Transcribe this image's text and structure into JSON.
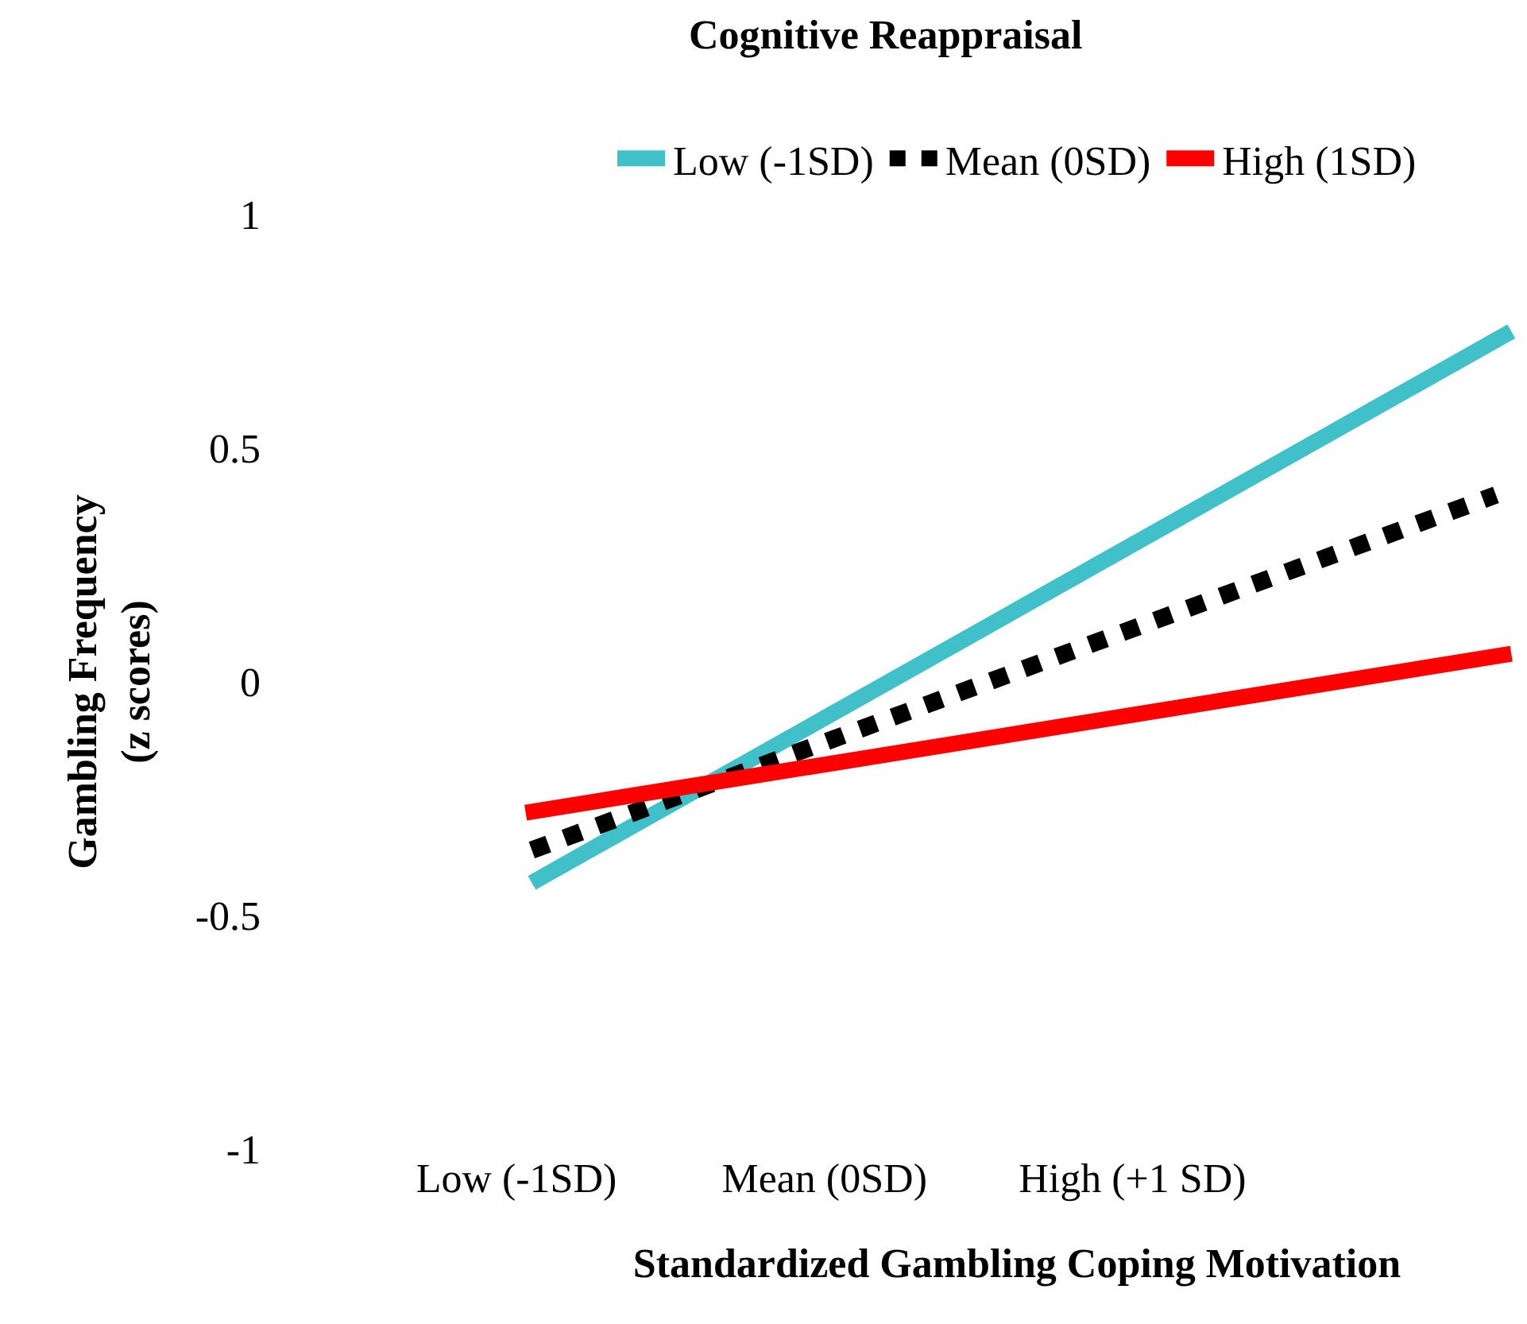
{
  "chart_data": {
    "type": "line",
    "title": "Cognitive Reappraisal",
    "xlabel": "Standardized Gambling Coping Motivation",
    "ylabel": "Gambling Frequency\n(z scores)",
    "xlim": [
      -1,
      2.25
    ],
    "xticks": [
      {
        "value": -1,
        "label": "Low (-1SD)"
      },
      {
        "value": 0,
        "label": "Mean (0SD)"
      },
      {
        "value": 1,
        "label": "High (+1 SD)"
      }
    ],
    "ylim": [
      -1,
      1
    ],
    "yticks": [
      1,
      0.5,
      0,
      -0.5,
      -1
    ],
    "grid": false,
    "legend": "top",
    "marker": "none",
    "series": [
      {
        "name": "Low (-1SD)",
        "color": "#40c0c8",
        "x": [
          -0.95,
          2.23
        ],
        "values": [
          -0.43,
          0.75
        ],
        "line_style": "solid"
      },
      {
        "name": "Mean (0SD)",
        "color": "#000000",
        "x": [
          -0.95,
          2.18
        ],
        "values": [
          -0.36,
          0.4
        ],
        "line_style": "dotted"
      },
      {
        "name": "High (1SD)",
        "color": "#ff0000",
        "x": [
          -0.97,
          2.23
        ],
        "values": [
          -0.28,
          0.06
        ],
        "line_style": "solid"
      }
    ]
  }
}
